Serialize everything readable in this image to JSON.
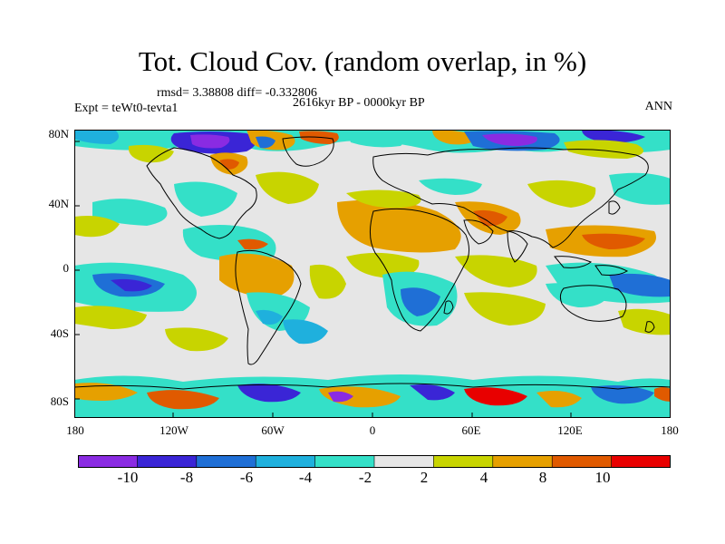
{
  "header": {
    "title": "Tot. Cloud Cov. (random overlap, in %)",
    "stats": "rmsd= 3.38808 diff= -0.332806",
    "period": "2616kyr BP - 0000kyr BP",
    "experiment": "Expt = teWt0-tevta1",
    "season": "ANN"
  },
  "map": {
    "lon_ticks": [
      "180",
      "120W",
      "60W",
      "0",
      "60E",
      "120E",
      "180"
    ],
    "lat_ticks": [
      "80N",
      "40N",
      "0",
      "40S",
      "80S"
    ],
    "background_color": "#e6e6e6",
    "coastline_color": "#000000"
  },
  "colorbar": {
    "labels": [
      "-10",
      "-8",
      "-6",
      "-4",
      "-2",
      "2",
      "4",
      "8",
      "10"
    ],
    "colors": [
      "#8a2be2",
      "#3a25d6",
      "#1f6fd6",
      "#1fb0dd",
      "#34e0c8",
      "#e6e6e6",
      "#c8d400",
      "#e6a000",
      "#e05a00",
      "#e80000"
    ]
  }
}
